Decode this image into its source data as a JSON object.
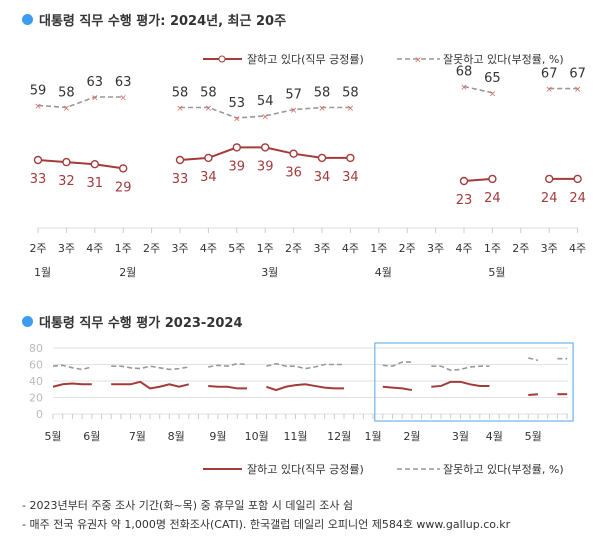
{
  "colors": {
    "positive": "#a33b3b",
    "negative": "#999999",
    "accent": "#3b9cf0",
    "highlight_box": "#6fb3ee"
  },
  "chart_data": [
    {
      "type": "line",
      "title": "대통령 직무 수행 평가: 2024년, 최근 20주",
      "legend_placement": "top-right",
      "x_week_labels": [
        "2주",
        "3주",
        "4주",
        "1주",
        "2주",
        "3주",
        "4주",
        "5주",
        "1주",
        "2주",
        "3주",
        "4주",
        "1주",
        "2주",
        "3주",
        "4주",
        "1주",
        "2주",
        "3주",
        "4주"
      ],
      "x_month_labels": [
        {
          "label": "1월",
          "index": 0
        },
        {
          "label": "2월",
          "index": 3
        },
        {
          "label": "3월",
          "index": 8
        },
        {
          "label": "4월",
          "index": 12
        },
        {
          "label": "5월",
          "index": 16
        }
      ],
      "series": [
        {
          "name": "잘하고 있다(직무 긍정률)",
          "marker": "circle",
          "values": [
            33,
            32,
            31,
            29,
            null,
            33,
            34,
            39,
            39,
            36,
            34,
            34,
            null,
            null,
            null,
            23,
            24,
            null,
            24,
            24
          ]
        },
        {
          "name": "잘못하고 있다(부정률, %)",
          "marker": "x",
          "dashed": true,
          "values": [
            59,
            58,
            63,
            63,
            null,
            58,
            58,
            53,
            54,
            57,
            58,
            58,
            null,
            null,
            null,
            68,
            65,
            null,
            67,
            67
          ]
        }
      ]
    },
    {
      "type": "line",
      "title": "대통령 직무 수행 평가 2023-2024",
      "ylim": [
        0,
        80
      ],
      "y_ticks": [
        "0",
        "20",
        "40",
        "60",
        "80"
      ],
      "grid": true,
      "legend_placement": "bottom-right",
      "highlight": "최근 20주 (2024년 1월 2주 ~ 5월 4주)",
      "x_month_labels": [
        {
          "label": "5월",
          "index": 0
        },
        {
          "label": "6월",
          "index": 4
        },
        {
          "label": "7월",
          "index": 8.7
        },
        {
          "label": "8월",
          "index": 12.7
        },
        {
          "label": "9월",
          "index": 17
        },
        {
          "label": "10월",
          "index": 21
        },
        {
          "label": "11월",
          "index": 25
        },
        {
          "label": "12월",
          "index": 29.5
        },
        {
          "label": "1월",
          "index": 33
        },
        {
          "label": "2월",
          "index": 37
        },
        {
          "label": "3월",
          "index": 42
        },
        {
          "label": "4월",
          "index": 45.5
        },
        {
          "label": "5월",
          "index": 49.5
        }
      ],
      "series": [
        {
          "name": "잘하고 있다(직무 긍정률)",
          "values": [
            33,
            36,
            37,
            36,
            36,
            null,
            36,
            36,
            36,
            39,
            31,
            33,
            36,
            33,
            36,
            null,
            34,
            33,
            33,
            31,
            31,
            null,
            33,
            29,
            33,
            35,
            36,
            34,
            32,
            31,
            31,
            null,
            null,
            null,
            33,
            32,
            31,
            29,
            null,
            33,
            34,
            39,
            39,
            36,
            34,
            34,
            null,
            null,
            null,
            23,
            24,
            null,
            24,
            24
          ]
        },
        {
          "name": "잘못하고 있다(부정률, %)",
          "dashed": true,
          "values": [
            58,
            59,
            56,
            54,
            57,
            null,
            58,
            58,
            56,
            55,
            58,
            56,
            54,
            55,
            57,
            null,
            57,
            59,
            58,
            61,
            60,
            null,
            58,
            61,
            58,
            58,
            55,
            57,
            60,
            60,
            60,
            null,
            null,
            null,
            59,
            58,
            63,
            63,
            null,
            58,
            58,
            53,
            54,
            57,
            58,
            58,
            null,
            null,
            null,
            68,
            65,
            null,
            67,
            67
          ]
        }
      ]
    }
  ],
  "notes": [
    "- 2023년부터 주중 조사 기간(화~목) 중 휴무일 포함 시 데일리 조사 쉼",
    "- 매주 전국 유권자 약 1,000명 전화조사(CATI). 한국갤럽 데일리 오피니언 제584호 www.gallup.co.kr"
  ]
}
